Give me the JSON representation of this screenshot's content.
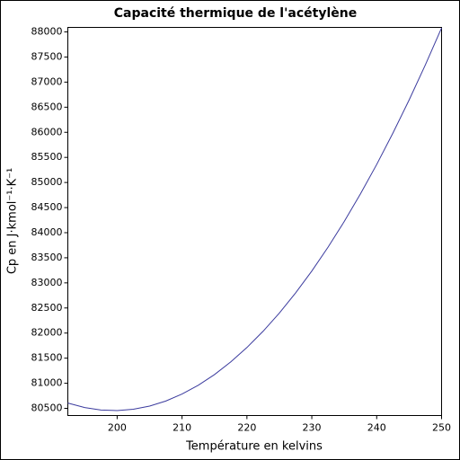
{
  "chart_data": {
    "type": "line",
    "title": "Capacité thermique de l'acétylène",
    "x_label": "Température en kelvins",
    "y_label": "Cp en J·kmol⁻¹·K⁻¹",
    "x": [
      192.4,
      195,
      197.5,
      200,
      202.5,
      205,
      207.5,
      210,
      212.5,
      215,
      217.5,
      220,
      222.5,
      225,
      227.5,
      230,
      232.5,
      235,
      237.5,
      240,
      242.5,
      245,
      247.5,
      250
    ],
    "series": [
      {
        "name": "Cp",
        "color": "#3b3b9e",
        "values": [
          80606,
          80516,
          80467,
          80456,
          80482,
          80545,
          80646,
          80785,
          80960,
          81173,
          81424,
          81712,
          82037,
          82399,
          82799,
          83236,
          83711,
          84223,
          84773,
          85359,
          85984,
          86645,
          87344,
          88080
        ]
      }
    ],
    "xlim": [
      192.4,
      250
    ],
    "xticks": [
      200,
      210,
      220,
      230,
      240,
      250
    ],
    "ylim": [
      80357,
      88090
    ],
    "yticks": [
      80500,
      81000,
      81500,
      82000,
      82500,
      83000,
      83500,
      84000,
      84500,
      85000,
      85500,
      86000,
      86500,
      87000,
      87500,
      88000
    ],
    "grid": false
  }
}
